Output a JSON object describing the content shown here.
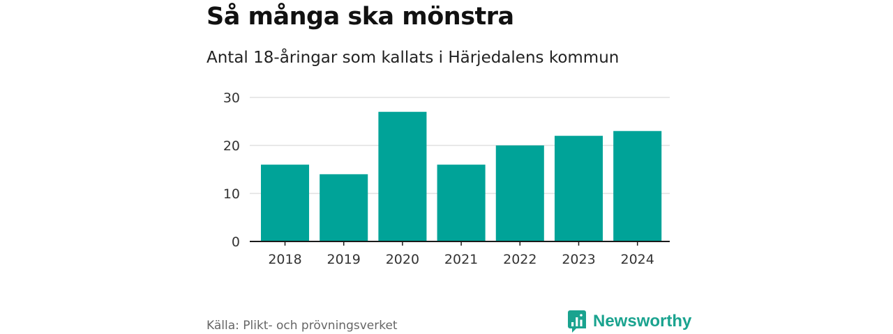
{
  "header": {
    "title": "Så många ska mönstra",
    "subtitle": "Antal 18-åringar som kallats i Härjedalens kommun"
  },
  "footer": {
    "source": "Källa: Plikt- och prövningsverket",
    "brand": "Newsworthy",
    "brand_icon": "newsworthy-logo-icon"
  },
  "colors": {
    "bar": "#00a398",
    "grid": "#d9d9d9",
    "axis": "#1a1a1a",
    "brand": "#1aa38f"
  },
  "chart_data": {
    "type": "bar",
    "title": "Så många ska mönstra",
    "subtitle": "Antal 18-åringar som kallats i Härjedalens kommun",
    "xlabel": "",
    "ylabel": "",
    "categories": [
      "2018",
      "2019",
      "2020",
      "2021",
      "2022",
      "2023",
      "2024"
    ],
    "values": [
      16,
      14,
      27,
      16,
      20,
      22,
      23
    ],
    "ylim": [
      0,
      30
    ],
    "yticks": [
      "0",
      "10",
      "20",
      "30"
    ],
    "grid": true,
    "legend": "none"
  }
}
